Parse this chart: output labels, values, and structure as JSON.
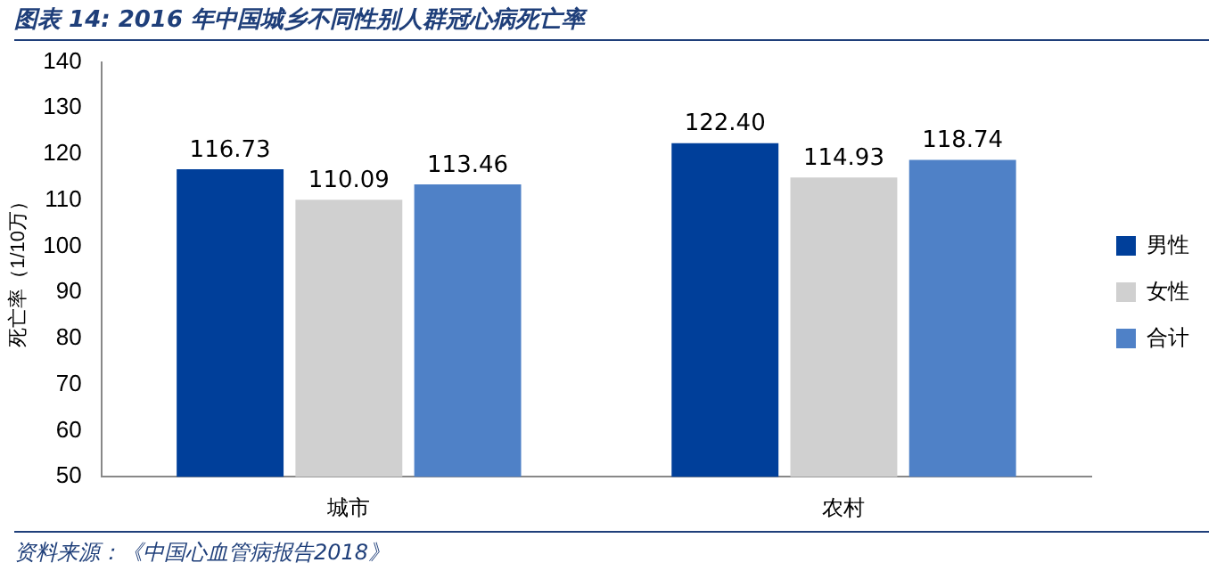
{
  "chart_data": {
    "type": "bar",
    "title": "图表 14:  2016 年中国城乡不同性别人群冠心病死亡率",
    "ylabel": "死亡率（1/10万）",
    "categories": [
      "城市",
      "农村"
    ],
    "series": [
      {
        "name": "男性",
        "color": "#003f9a",
        "values": [
          116.73,
          122.4
        ]
      },
      {
        "name": "女性",
        "color": "#d0d0d0",
        "values": [
          110.09,
          114.93
        ]
      },
      {
        "name": "合计",
        "color": "#4f81c7",
        "values": [
          113.46,
          118.74
        ]
      }
    ],
    "value_labels": [
      [
        "116.73",
        "122.40"
      ],
      [
        "110.09",
        "114.93"
      ],
      [
        "113.46",
        "118.74"
      ]
    ],
    "ylim": [
      50,
      140
    ],
    "yticks": [
      50,
      60,
      70,
      80,
      90,
      100,
      110,
      120,
      130,
      140
    ],
    "grid": false,
    "legend": "right",
    "annotations": [
      "资料来源：《中国心血管病报告2018》"
    ]
  }
}
